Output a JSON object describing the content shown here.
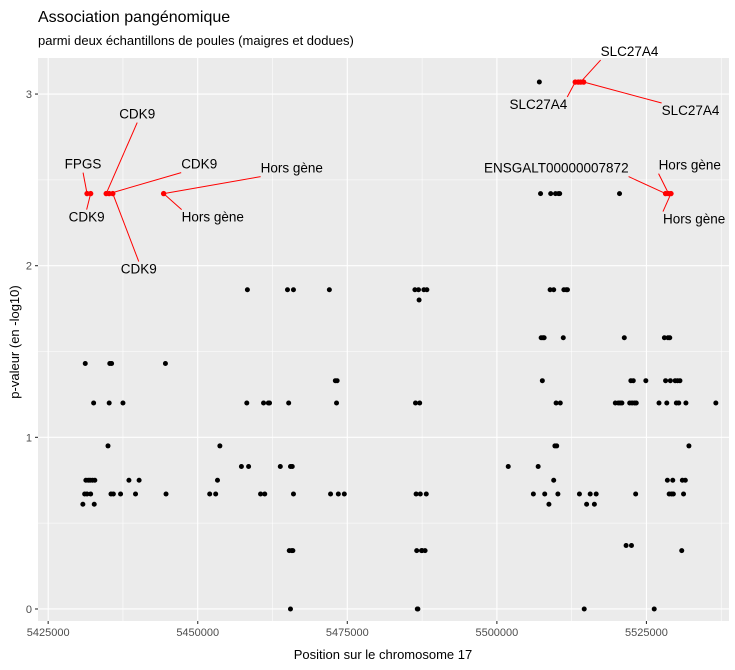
{
  "chart_data": {
    "type": "scatter",
    "title": "Association pangénomique",
    "subtitle": "parmi deux échantillons de poules (maigres et dodues)",
    "xlabel": "Position sur le chromosome 17",
    "ylabel": "p-valeur (en -log10)",
    "xlim": [
      5423300,
      5538800
    ],
    "ylim": [
      -0.07,
      3.21
    ],
    "x_ticks": [
      5425000,
      5450000,
      5475000,
      5500000,
      5525000
    ],
    "x_tick_labels": [
      "5425000",
      "5450000",
      "5475000",
      "5500000",
      "5525000"
    ],
    "y_ticks": [
      0,
      1,
      2,
      3
    ],
    "y_tick_labels": [
      "0",
      "1",
      "2",
      "3"
    ],
    "grid": true,
    "colors": {
      "panel": "#ebebeb",
      "grid": "#ffffff",
      "point": "#000000",
      "highlight": "#ff0000",
      "leader": "#ff0000"
    },
    "points": [
      [
        5430800,
        0.61
      ],
      [
        5431100,
        0.67
      ],
      [
        5431200,
        1.43
      ],
      [
        5431300,
        0.75
      ],
      [
        5431500,
        0.67
      ],
      [
        5431700,
        0.75
      ],
      [
        5432000,
        0.75
      ],
      [
        5432100,
        0.67
      ],
      [
        5432400,
        0.75
      ],
      [
        5432600,
        1.2
      ],
      [
        5432700,
        0.61
      ],
      [
        5432800,
        0.75
      ],
      [
        5435000,
        0.95
      ],
      [
        5435200,
        1.2
      ],
      [
        5435300,
        1.43
      ],
      [
        5435500,
        0.67
      ],
      [
        5435600,
        1.43
      ],
      [
        5435900,
        0.67
      ],
      [
        5437100,
        0.67
      ],
      [
        5437500,
        1.2
      ],
      [
        5438500,
        0.75
      ],
      [
        5439600,
        0.67
      ],
      [
        5440200,
        0.75
      ],
      [
        5444600,
        1.43
      ],
      [
        5444700,
        0.67
      ],
      [
        5452000,
        0.67
      ],
      [
        5453000,
        0.67
      ],
      [
        5453300,
        0.75
      ],
      [
        5453700,
        0.95
      ],
      [
        5457300,
        0.83
      ],
      [
        5458200,
        1.2
      ],
      [
        5458300,
        1.86
      ],
      [
        5458500,
        0.83
      ],
      [
        5460500,
        0.67
      ],
      [
        5461000,
        1.2
      ],
      [
        5461200,
        0.67
      ],
      [
        5461800,
        1.2
      ],
      [
        5462000,
        1.2
      ],
      [
        5463800,
        0.83
      ],
      [
        5465000,
        1.86
      ],
      [
        5465200,
        1.2
      ],
      [
        5465300,
        0.34
      ],
      [
        5465500,
        0.83
      ],
      [
        5465500,
        0.0
      ],
      [
        5465700,
        0.34
      ],
      [
        5465800,
        0.83
      ],
      [
        5465900,
        0.34
      ],
      [
        5466000,
        1.86
      ],
      [
        5466000,
        0.67
      ],
      [
        5472000,
        1.86
      ],
      [
        5472200,
        0.67
      ],
      [
        5473000,
        1.33
      ],
      [
        5473200,
        1.2
      ],
      [
        5473300,
        1.33
      ],
      [
        5473500,
        0.67
      ],
      [
        5474500,
        0.67
      ],
      [
        5486300,
        1.86
      ],
      [
        5486400,
        1.2
      ],
      [
        5486500,
        0.67
      ],
      [
        5486600,
        0.34
      ],
      [
        5486700,
        0.0
      ],
      [
        5486800,
        0.0
      ],
      [
        5486900,
        1.86
      ],
      [
        5487000,
        1.8
      ],
      [
        5487100,
        1.2
      ],
      [
        5487200,
        0.67
      ],
      [
        5487400,
        0.34
      ],
      [
        5487500,
        0.34
      ],
      [
        5487800,
        1.86
      ],
      [
        5488000,
        0.34
      ],
      [
        5488200,
        0.67
      ],
      [
        5488300,
        1.86
      ],
      [
        5501900,
        0.83
      ],
      [
        5506100,
        0.67
      ],
      [
        5506900,
        0.83
      ],
      [
        5507100,
        3.07
      ],
      [
        5507300,
        2.42
      ],
      [
        5507400,
        1.58
      ],
      [
        5507600,
        1.33
      ],
      [
        5507700,
        1.58
      ],
      [
        5507900,
        1.58
      ],
      [
        5508000,
        0.67
      ],
      [
        5508700,
        0.61
      ],
      [
        5508900,
        1.86
      ],
      [
        5509000,
        2.42
      ],
      [
        5509500,
        0.75
      ],
      [
        5509500,
        1.86
      ],
      [
        5509700,
        0.95
      ],
      [
        5509800,
        2.42
      ],
      [
        5509900,
        1.2
      ],
      [
        5510000,
        0.95
      ],
      [
        5510200,
        0.67
      ],
      [
        5510300,
        2.42
      ],
      [
        5510500,
        2.42
      ],
      [
        5510600,
        1.2
      ],
      [
        5511100,
        1.58
      ],
      [
        5511200,
        1.86
      ],
      [
        5511600,
        1.86
      ],
      [
        5511800,
        1.86
      ],
      [
        5513800,
        0.67
      ],
      [
        5514600,
        0.0
      ],
      [
        5515000,
        0.61
      ],
      [
        5515600,
        0.67
      ],
      [
        5516300,
        0.61
      ],
      [
        5516600,
        0.67
      ],
      [
        5519800,
        1.2
      ],
      [
        5520300,
        1.2
      ],
      [
        5520500,
        2.42
      ],
      [
        5520600,
        1.2
      ],
      [
        5520900,
        1.2
      ],
      [
        5521300,
        1.58
      ],
      [
        5521600,
        0.37
      ],
      [
        5522200,
        1.2
      ],
      [
        5522400,
        1.33
      ],
      [
        5522500,
        0.37
      ],
      [
        5522600,
        1.2
      ],
      [
        5522800,
        1.33
      ],
      [
        5523000,
        1.2
      ],
      [
        5523200,
        0.67
      ],
      [
        5523300,
        1.2
      ],
      [
        5524900,
        1.33
      ],
      [
        5526300,
        0.0
      ],
      [
        5527100,
        1.2
      ],
      [
        5528000,
        1.58
      ],
      [
        5528200,
        1.33
      ],
      [
        5528400,
        1.2
      ],
      [
        5528500,
        0.75
      ],
      [
        5528600,
        1.58
      ],
      [
        5528800,
        0.67
      ],
      [
        5528900,
        1.58
      ],
      [
        5529000,
        1.33
      ],
      [
        5529200,
        0.67
      ],
      [
        5529400,
        0.75
      ],
      [
        5529500,
        0.67
      ],
      [
        5529800,
        1.33
      ],
      [
        5530000,
        1.2
      ],
      [
        5530200,
        1.33
      ],
      [
        5530400,
        1.2
      ],
      [
        5530600,
        1.33
      ],
      [
        5530900,
        0.34
      ],
      [
        5531000,
        0.75
      ],
      [
        5531200,
        0.67
      ],
      [
        5531500,
        0.75
      ],
      [
        5531600,
        1.2
      ],
      [
        5532100,
        0.95
      ],
      [
        5536600,
        1.2
      ]
    ],
    "highlights": [
      [
        5431500,
        2.42
      ],
      [
        5432100,
        2.42
      ],
      [
        5434700,
        2.42
      ],
      [
        5435200,
        2.42
      ],
      [
        5435800,
        2.42
      ],
      [
        5444300,
        2.42
      ],
      [
        5513100,
        3.07
      ],
      [
        5513600,
        3.07
      ],
      [
        5514000,
        3.07
      ],
      [
        5514500,
        3.07
      ],
      [
        5528200,
        2.42
      ],
      [
        5528700,
        2.42
      ],
      [
        5529100,
        2.42
      ]
    ],
    "annotations": [
      {
        "text": "FPGS",
        "x": 5431500,
        "y": 2.42,
        "anchor": "middle"
      },
      {
        "text": "CDK9",
        "x": 5432100,
        "y": 2.42,
        "anchor": "middle"
      },
      {
        "text": "CDK9",
        "x": 5434700,
        "y": 2.42,
        "anchor": "middle"
      },
      {
        "text": "CDK9",
        "x": 5435200,
        "y": 2.42,
        "anchor": "start"
      },
      {
        "text": "CDK9",
        "x": 5435800,
        "y": 2.42,
        "anchor": "middle"
      },
      {
        "text": "Hors gène",
        "x": 5444300,
        "y": 2.42,
        "anchor": "start"
      },
      {
        "text": "Hors gène",
        "x": 5444300,
        "y": 2.42,
        "anchor": "start"
      },
      {
        "text": "SLC27A4",
        "x": 5513100,
        "y": 3.07,
        "anchor": "end"
      },
      {
        "text": "SLC27A4",
        "x": 5514000,
        "y": 3.07,
        "anchor": "start"
      },
      {
        "text": "SLC27A4",
        "x": 5514500,
        "y": 3.07,
        "anchor": "start"
      },
      {
        "text": "ENSGALT00000007872",
        "x": 5528200,
        "y": 2.42,
        "anchor": "end"
      },
      {
        "text": "Hors gène",
        "x": 5528700,
        "y": 2.42,
        "anchor": "start"
      },
      {
        "text": "Hors gène",
        "x": 5529100,
        "y": 2.42,
        "anchor": "start"
      }
    ]
  }
}
